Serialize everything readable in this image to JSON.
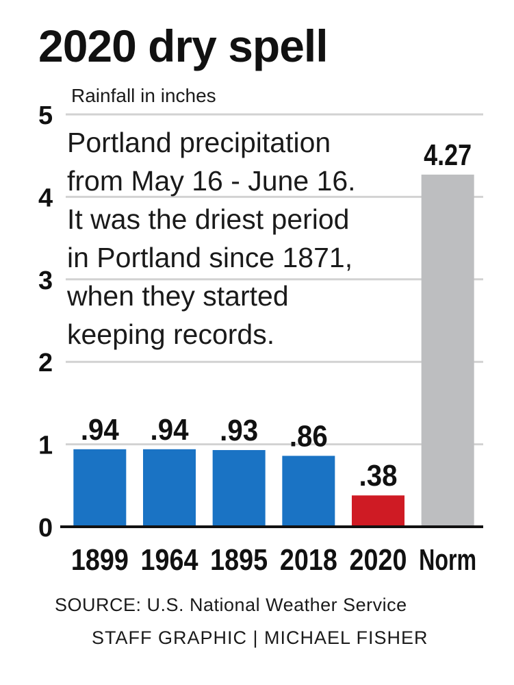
{
  "title": "2020 dry spell",
  "note_lines": [
    "Portland precipitation",
    "from May 16 - June 16.",
    "It was the driest period",
    "in Portland since 1871,",
    "when they started",
    "keeping records."
  ],
  "source": "SOURCE: U.S. National Weather Service",
  "credit": "STAFF GRAPHIC | MICHAEL FISHER",
  "colors": {
    "blue": "#1a73c4",
    "red": "#cf1b24",
    "gray": "#bdbec0",
    "grid": "#d2d2d2",
    "axis": "#111111"
  },
  "chart_data": {
    "type": "bar",
    "ylabel": "Rainfall in inches",
    "ylim": [
      0,
      5
    ],
    "yticks": [
      "0",
      "1",
      "2",
      "3",
      "4",
      "5"
    ],
    "categories": [
      "1899",
      "1964",
      "1895",
      "2018",
      "2020",
      "Norm"
    ],
    "values": [
      0.94,
      0.94,
      0.93,
      0.86,
      0.38,
      4.27
    ],
    "value_labels": [
      ".94",
      ".94",
      ".93",
      ".86",
      ".38",
      "4.27"
    ],
    "bar_colors": [
      "blue",
      "blue",
      "blue",
      "blue",
      "red",
      "gray"
    ],
    "grid": true
  }
}
